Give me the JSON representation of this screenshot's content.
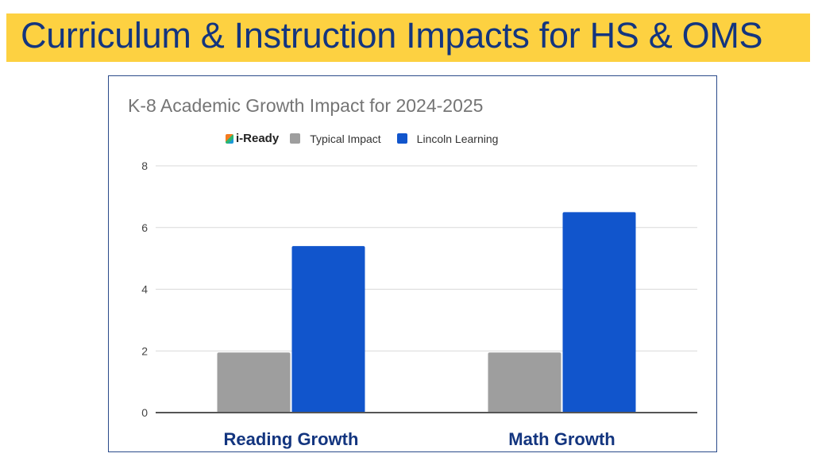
{
  "slide_title": "Curriculum & Instruction Impacts for HS & OMS",
  "chart_data": {
    "type": "bar",
    "title": "K-8 Academic Growth Impact for 2024-2025",
    "legend_logo": "i-Ready",
    "legend_placement": "top",
    "categories": [
      "Reading Growth",
      "Math Growth"
    ],
    "series": [
      {
        "name": "Typical Impact",
        "color": "#9e9e9e",
        "values": [
          1.95,
          1.95
        ]
      },
      {
        "name": "Lincoln Learning",
        "color": "#1155cc",
        "values": [
          5.4,
          6.5
        ]
      }
    ],
    "ylim": [
      0,
      8
    ],
    "yticks": [
      "0",
      "2",
      "4",
      "6",
      "8"
    ],
    "grid": true,
    "xlabel": "",
    "ylabel": ""
  },
  "colors": {
    "banner": "#fdd141",
    "title_text": "#13357f",
    "category_text": "#13357f"
  }
}
